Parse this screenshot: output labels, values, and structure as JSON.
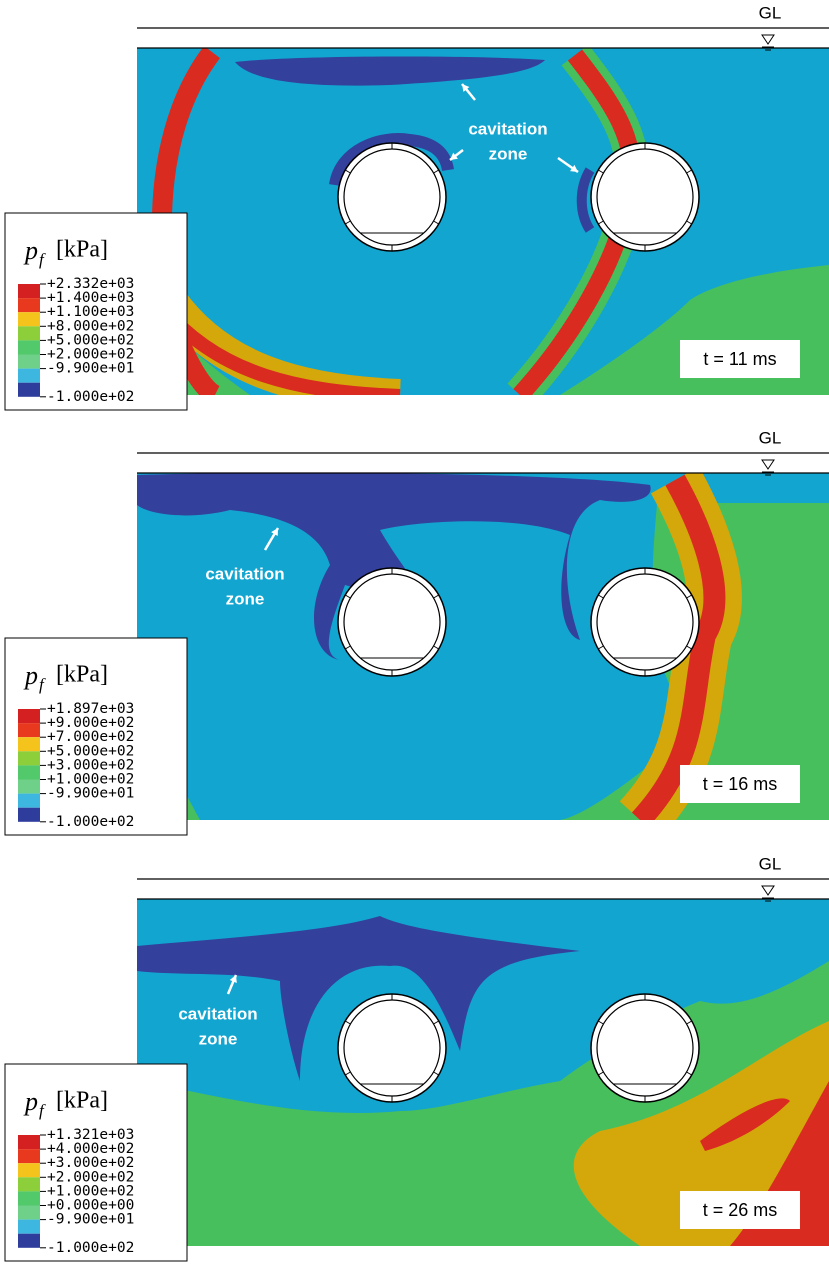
{
  "panels": [
    {
      "ground_label": "GL",
      "legend": {
        "symbol": "p",
        "subscript": "f",
        "unit": "[kPa]",
        "labels": [
          "+2.332e+03",
          "+1.400e+03",
          "+1.100e+03",
          "+8.000e+02",
          "+5.000e+02",
          "+2.000e+02",
          "-9.900e+01",
          "-1.000e+02"
        ]
      },
      "annotation": [
        "cavitation",
        "zone"
      ],
      "time_label": "t = 11 ms"
    },
    {
      "ground_label": "GL",
      "legend": {
        "symbol": "p",
        "subscript": "f",
        "unit": "[kPa]",
        "labels": [
          "+1.897e+03",
          "+9.000e+02",
          "+7.000e+02",
          "+5.000e+02",
          "+3.000e+02",
          "+1.000e+02",
          "-9.900e+01",
          "-1.000e+02"
        ]
      },
      "annotation": [
        "cavitation",
        "zone"
      ],
      "time_label": "t = 16 ms"
    },
    {
      "ground_label": "GL",
      "legend": {
        "symbol": "p",
        "subscript": "f",
        "unit": "[kPa]",
        "labels": [
          "+1.321e+03",
          "+4.000e+02",
          "+3.000e+02",
          "+2.000e+02",
          "+1.000e+02",
          "+0.000e+00",
          "-9.900e+01",
          "-1.000e+02"
        ]
      },
      "annotation": [
        "cavitation",
        "zone"
      ],
      "time_label": "t = 26 ms"
    }
  ]
}
